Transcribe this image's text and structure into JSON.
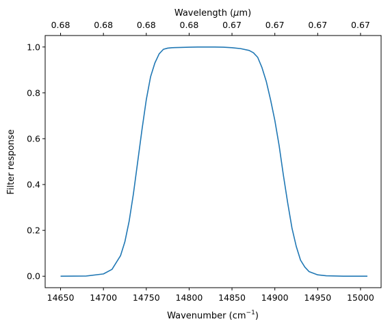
{
  "chart_data": {
    "type": "line",
    "title": "",
    "xlabel": "Wavenumber (cm",
    "xlabel_sup": "−1",
    "xlabel_suffix": ")",
    "ylabel": "Filter response",
    "top_xlabel_pre": "Wavelength (",
    "top_xlabel_mu": "μ",
    "top_xlabel_post": "m)",
    "xlim": [
      14632,
      15024
    ],
    "ylim": [
      -0.05,
      1.05
    ],
    "x_ticks": [
      14650,
      14700,
      14750,
      14800,
      14850,
      14900,
      14950,
      15000
    ],
    "x_tick_labels": [
      "14650",
      "14700",
      "14750",
      "14800",
      "14850",
      "14900",
      "14950",
      "15000"
    ],
    "y_ticks": [
      0.0,
      0.2,
      0.4,
      0.6,
      0.8,
      1.0
    ],
    "y_tick_labels": [
      "0.0",
      "0.2",
      "0.4",
      "0.6",
      "0.8",
      "1.0"
    ],
    "top_x_ticks": [
      14650,
      14700,
      14750,
      14800,
      14850,
      14900,
      14950,
      15000
    ],
    "top_x_tick_labels": [
      "0.68",
      "0.68",
      "0.68",
      "0.68",
      "0.67",
      "0.67",
      "0.67",
      "0.67"
    ],
    "grid": false,
    "series": [
      {
        "color": "#1f77b4",
        "x": [
          14650,
          14680,
          14700,
          14710,
          14720,
          14725,
          14730,
          14735,
          14740,
          14745,
          14750,
          14755,
          14760,
          14765,
          14770,
          14775,
          14780,
          14790,
          14800,
          14810,
          14820,
          14830,
          14840,
          14850,
          14860,
          14870,
          14875,
          14880,
          14885,
          14890,
          14895,
          14900,
          14905,
          14910,
          14915,
          14920,
          14925,
          14930,
          14935,
          14940,
          14950,
          14960,
          14980,
          15008
        ],
        "y": [
          0.0,
          0.001,
          0.01,
          0.03,
          0.09,
          0.15,
          0.24,
          0.36,
          0.5,
          0.64,
          0.77,
          0.87,
          0.93,
          0.97,
          0.99,
          0.995,
          0.997,
          0.998,
          0.999,
          1.0,
          1.0,
          1.0,
          0.999,
          0.997,
          0.993,
          0.985,
          0.975,
          0.955,
          0.91,
          0.85,
          0.77,
          0.68,
          0.57,
          0.44,
          0.32,
          0.21,
          0.13,
          0.07,
          0.04,
          0.02,
          0.006,
          0.002,
          0.0,
          0.0
        ]
      }
    ]
  }
}
